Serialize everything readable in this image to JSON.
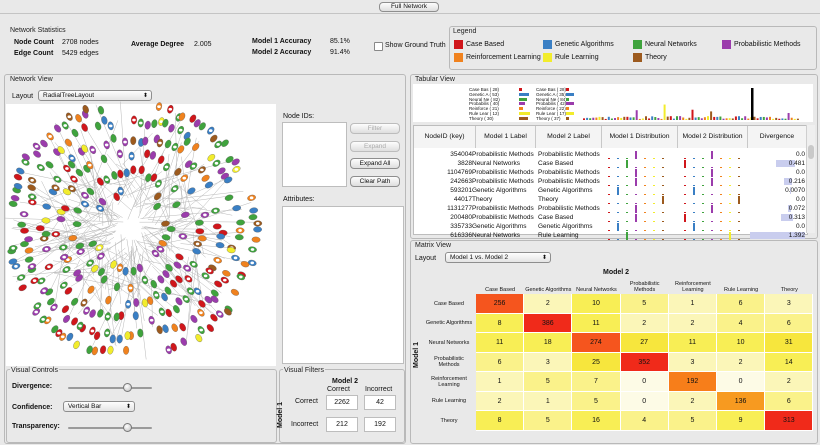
{
  "header": {
    "button": "Full Network"
  },
  "stats": {
    "title": "Network Statistics",
    "node_count_label": "Node Count",
    "node_count": "2708 nodes",
    "edge_count_label": "Edge Count",
    "edge_count": "5429 edges",
    "avg_degree_label": "Average Degree",
    "avg_degree": "2.005",
    "m1_acc_label": "Model 1 Accuracy",
    "m1_acc": "85.1%",
    "m2_acc_label": "Model 2 Accuracy",
    "m2_acc": "91.4%",
    "show_ground_truth": "Show Ground Truth"
  },
  "legend": {
    "title": "Legend",
    "items": [
      {
        "label": "Case Based",
        "color": "#d0161b"
      },
      {
        "label": "Genetic Algorithms",
        "color": "#3a7fc4"
      },
      {
        "label": "Neural Networks",
        "color": "#3fa33d"
      },
      {
        "label": "Probabilistic Methods",
        "color": "#9b3cac"
      },
      {
        "label": "Reinforcement Learning",
        "color": "#f0821e"
      },
      {
        "label": "Rule Learning",
        "color": "#f2ec2c"
      },
      {
        "label": "Theory",
        "color": "#9c5a1e"
      }
    ]
  },
  "network": {
    "title": "Network View",
    "layout_label": "Layout",
    "layout_value": "RadialTreeLayout",
    "node_ids_label": "Node IDs:",
    "attributes_label": "Attributes:",
    "filter": "Filter",
    "expand": "Expand",
    "expand_all": "Expand All",
    "clear_path": "Clear Path"
  },
  "visual_controls": {
    "title": "Visual Controls",
    "divergence": "Divergence:",
    "confidence": "Confidence:",
    "confidence_value": "Vertical Bar",
    "transparency": "Transparency:",
    "divergence_level": 0.7,
    "transparency_level": 0.7
  },
  "visual_filters": {
    "title": "Visual Filters",
    "model2": "Model 2",
    "model1": "Model 1",
    "correct": "Correct",
    "incorrect": "Incorrect",
    "cells": [
      [
        "2262",
        "42"
      ],
      [
        "212",
        "192"
      ]
    ]
  },
  "tabular": {
    "title": "Tabular View",
    "mini_labels": [
      "Case Bas ( 28)",
      "Genetic A ( 53)",
      "Neural Ne ( 82)",
      "Probabilis ( 40)",
      "Reinforce ( 21)",
      "Rule Lear ( 12)",
      "Theory ( 30)"
    ],
    "mini_labels2": [
      "Case Bas ( 28)",
      "Genetic A ( 35)",
      "Neural Ne ( 84)",
      "Probabilis ( 42)",
      "Reinforce ( 22)",
      "Rule Lear ( 17)",
      "Theory ( 37)"
    ],
    "columns": [
      "NodeID (key)",
      "Model 1 Label",
      "Model 2 Label",
      "Model 1 Distribution",
      "Model 2 Distribution",
      "Divergence"
    ],
    "rows": [
      {
        "id": "354004",
        "m1": "Probabilistic Methods",
        "m2": "Probabilistic Methods",
        "div": "0.0"
      },
      {
        "id": "3828",
        "m1": "Neural Networks",
        "m2": "Case Based",
        "div": "0.481"
      },
      {
        "id": "1104769",
        "m1": "Probabilistic Methods",
        "m2": "Probabilistic Methods",
        "div": "0.0"
      },
      {
        "id": "242663",
        "m1": "Probabilistic Methods",
        "m2": "Probabilistic Methods",
        "div": "0.216"
      },
      {
        "id": "593201",
        "m1": "Genetic Algorithms",
        "m2": "Genetic Algorithms",
        "div": "0.0070"
      },
      {
        "id": "44017",
        "m1": "Theory",
        "m2": "Theory",
        "div": "0.0"
      },
      {
        "id": "1131277",
        "m1": "Probabilistic Methods",
        "m2": "Probabilistic Methods",
        "div": "0.072"
      },
      {
        "id": "200480",
        "m1": "Probabilistic Methods",
        "m2": "Case Based",
        "div": "0.313"
      },
      {
        "id": "335733",
        "m1": "Genetic Algorithms",
        "m2": "Genetic Algorithms",
        "div": "0.0"
      },
      {
        "id": "616336",
        "m1": "Neural Networks",
        "m2": "Rule Learning",
        "div": "1.392"
      }
    ]
  },
  "matrix": {
    "title": "Matrix View",
    "layout_label": "Layout",
    "layout_value": "Model 1 vs. Model 2",
    "col_title": "Model 2",
    "row_title": "Model 1",
    "categories": [
      "Case Based",
      "Genetic Algorithms",
      "Neural Networks",
      "Probabilistic Methods",
      "Reinforcement Learning",
      "Rule Learning",
      "Theory"
    ],
    "values": [
      [
        256,
        2,
        10,
        5,
        1,
        6,
        3
      ],
      [
        8,
        386,
        11,
        2,
        2,
        4,
        6
      ],
      [
        11,
        18,
        274,
        27,
        11,
        10,
        31
      ],
      [
        6,
        3,
        25,
        352,
        3,
        2,
        14
      ],
      [
        1,
        5,
        7,
        0,
        192,
        0,
        2
      ],
      [
        2,
        1,
        5,
        0,
        2,
        136,
        6
      ],
      [
        8,
        5,
        16,
        4,
        5,
        9,
        313
      ]
    ]
  }
}
